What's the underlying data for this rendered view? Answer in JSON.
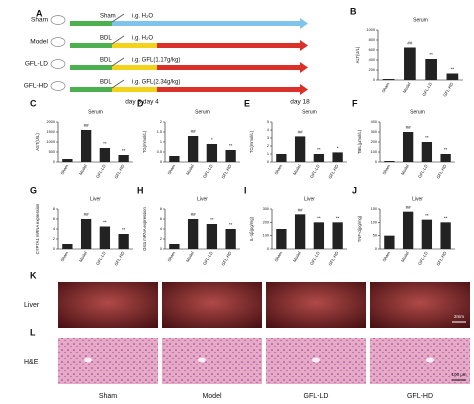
{
  "chart_data": [
    {
      "type": "bar",
      "label": "B",
      "title": "Serum",
      "y_label": "ALT(U/L)",
      "categories": [
        "Sham",
        "Model",
        "GFL-LD",
        "GFL-HD"
      ],
      "values": [
        20,
        650,
        420,
        130
      ],
      "annotations": [
        null,
        "##",
        "**",
        "**"
      ],
      "color": "#222222",
      "ylim": [
        0,
        1000
      ],
      "yticks": [
        0,
        200,
        400,
        600,
        800,
        1000
      ]
    },
    {
      "type": "bar",
      "label": "C",
      "title": "Serum",
      "y_label": "AST(U/L)",
      "categories": [
        "Sham",
        "Model",
        "GFL-LD",
        "GFL-HD"
      ],
      "values": [
        150,
        1600,
        700,
        350
      ],
      "annotations": [
        null,
        "##",
        "**",
        "**"
      ],
      "color": "#222222",
      "ylim": [
        0,
        2000
      ],
      "yticks": [
        0,
        500,
        1000,
        1500,
        2000
      ]
    },
    {
      "type": "bar",
      "label": "D",
      "title": "Serum",
      "y_label": "TG(mmol/L)",
      "categories": [
        "Sham",
        "Model",
        "GFL-LD",
        "GFL-HD"
      ],
      "values": [
        0.3,
        1.3,
        0.9,
        0.6
      ],
      "annotations": [
        null,
        "##",
        "*",
        "**"
      ],
      "color": "#222222",
      "ylim": [
        0,
        2
      ],
      "yticks": [
        0,
        0.5,
        1,
        1.5,
        2
      ]
    },
    {
      "type": "bar",
      "label": "E",
      "title": "Serum",
      "y_label": "TC(mmol/L)",
      "categories": [
        "Sham",
        "Model",
        "GFL-LD",
        "GFL-HD"
      ],
      "values": [
        1,
        3.2,
        1,
        1.2
      ],
      "annotations": [
        null,
        "##",
        "**",
        "*"
      ],
      "color": "#222222",
      "ylim": [
        0,
        5
      ],
      "yticks": [
        0,
        1,
        2,
        3,
        4,
        5
      ]
    },
    {
      "type": "bar",
      "label": "F",
      "title": "Serum",
      "y_label": "TBIL(μmol/L)",
      "categories": [
        "Sham",
        "Model",
        "GFL-LD",
        "GFL-HD"
      ],
      "values": [
        10,
        300,
        200,
        80
      ],
      "annotations": [
        null,
        "##",
        "**",
        "**"
      ],
      "color": "#222222",
      "ylim": [
        0,
        400
      ],
      "yticks": [
        0,
        100,
        200,
        300,
        400
      ]
    },
    {
      "type": "bar",
      "label": "G",
      "title": "Liver",
      "y_label": "CYP7A1 mRNA expression",
      "categories": [
        "Sham",
        "Model",
        "GFL-LD",
        "GFL-HD"
      ],
      "values": [
        1,
        6,
        4.5,
        3
      ],
      "annotations": [
        null,
        "##",
        "**",
        "**"
      ],
      "color": "#222222",
      "ylim": [
        0,
        8
      ],
      "yticks": [
        0,
        2,
        4,
        6,
        8
      ]
    },
    {
      "type": "bar",
      "label": "H",
      "title": "Liver",
      "y_label": "Ostα mRNA expression",
      "categories": [
        "Sham",
        "Model",
        "GFL-LD",
        "GFL-HD"
      ],
      "values": [
        1,
        6,
        5,
        4
      ],
      "annotations": [
        null,
        "##",
        "**",
        "**"
      ],
      "color": "#222222",
      "ylim": [
        0,
        8
      ],
      "yticks": [
        0,
        2,
        4,
        6,
        8
      ]
    },
    {
      "type": "bar",
      "label": "I",
      "title": "Liver",
      "y_label": "IL-1β(pg/mg)",
      "categories": [
        "Sham",
        "Model",
        "GFL-LD",
        "GFL-HD"
      ],
      "values": [
        150,
        260,
        200,
        200
      ],
      "annotations": [
        null,
        "##",
        "**",
        "**"
      ],
      "color": "#222222",
      "ylim": [
        0,
        300
      ],
      "yticks": [
        0,
        100,
        200,
        300
      ]
    },
    {
      "type": "bar",
      "label": "J",
      "title": "Liver",
      "y_label": "TNF-α(pg/mg)",
      "categories": [
        "Sham",
        "Model",
        "GFL-LD",
        "GFL-HD"
      ],
      "values": [
        50,
        140,
        110,
        100
      ],
      "annotations": [
        null,
        "##",
        "**",
        "**"
      ],
      "color": "#222222",
      "ylim": [
        0,
        150
      ],
      "yticks": [
        0,
        50,
        100,
        150
      ]
    }
  ],
  "diagram": {
    "label": "A",
    "rows": [
      {
        "group": "Sham",
        "procedure": "Sham",
        "treatment": "i.g. H₂O"
      },
      {
        "group": "Model",
        "procedure": "BDL",
        "treatment": "i.g. H₂O"
      },
      {
        "group": "GFL-LD",
        "procedure": "BDL",
        "treatment": "i.g. GFL(1.17g/kg)"
      },
      {
        "group": "GFL-HD",
        "procedure": "BDL",
        "treatment": "i.g. GFL(2.34g/kg)"
      }
    ],
    "days": [
      "day 3 day 4",
      "day 18"
    ]
  },
  "images": {
    "K": {
      "label": "K",
      "tissue": "Liver",
      "scale": "2mm"
    },
    "L": {
      "label": "L",
      "stain": "H&E",
      "scale": "100 μm"
    },
    "groups": [
      "Sham",
      "Model",
      "GFL-LD",
      "GFL-HD"
    ]
  }
}
